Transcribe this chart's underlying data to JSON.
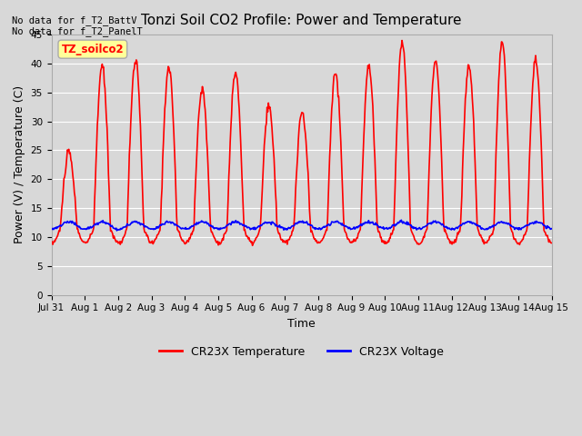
{
  "title": "Tonzi Soil CO2 Profile: Power and Temperature",
  "xlabel": "Time",
  "ylabel": "Power (V) / Temperature (C)",
  "ylim": [
    0,
    45
  ],
  "yticks": [
    0,
    5,
    10,
    15,
    20,
    25,
    30,
    35,
    40,
    45
  ],
  "bg_color": "#d8d8d8",
  "annotation_top": "No data for f_T2_BattV\nNo data for f_T2_PanelT",
  "box_label": "TZ_soilco2",
  "box_bg": "#ffff99",
  "box_edge": "#aaaaaa",
  "legend_items": [
    {
      "label": "CR23X Temperature",
      "color": "red"
    },
    {
      "label": "CR23X Voltage",
      "color": "blue"
    }
  ],
  "x_tick_labels": [
    "Jul 31",
    "Aug 1",
    "Aug 2",
    "Aug 3",
    "Aug 4",
    "Aug 5",
    "Aug 6",
    "Aug 7",
    "Aug 8",
    "Aug 9",
    "Aug 10",
    "Aug 11",
    "Aug 12",
    "Aug 13",
    "Aug 14",
    "Aug 15"
  ],
  "x_tick_positions": [
    0,
    1,
    2,
    3,
    4,
    5,
    6,
    7,
    8,
    9,
    10,
    11,
    12,
    13,
    14,
    15
  ],
  "temp_color": "red",
  "volt_color": "blue",
  "temp_linewidth": 1.2,
  "volt_linewidth": 1.2,
  "n_days": 15,
  "temp_amp_values": [
    13,
    28,
    29,
    28,
    24,
    27,
    21,
    20,
    27,
    28,
    32,
    29,
    28,
    32,
    29
  ],
  "temp_base": 11.5,
  "volt_base": 12.0,
  "volt_amp": 0.6
}
